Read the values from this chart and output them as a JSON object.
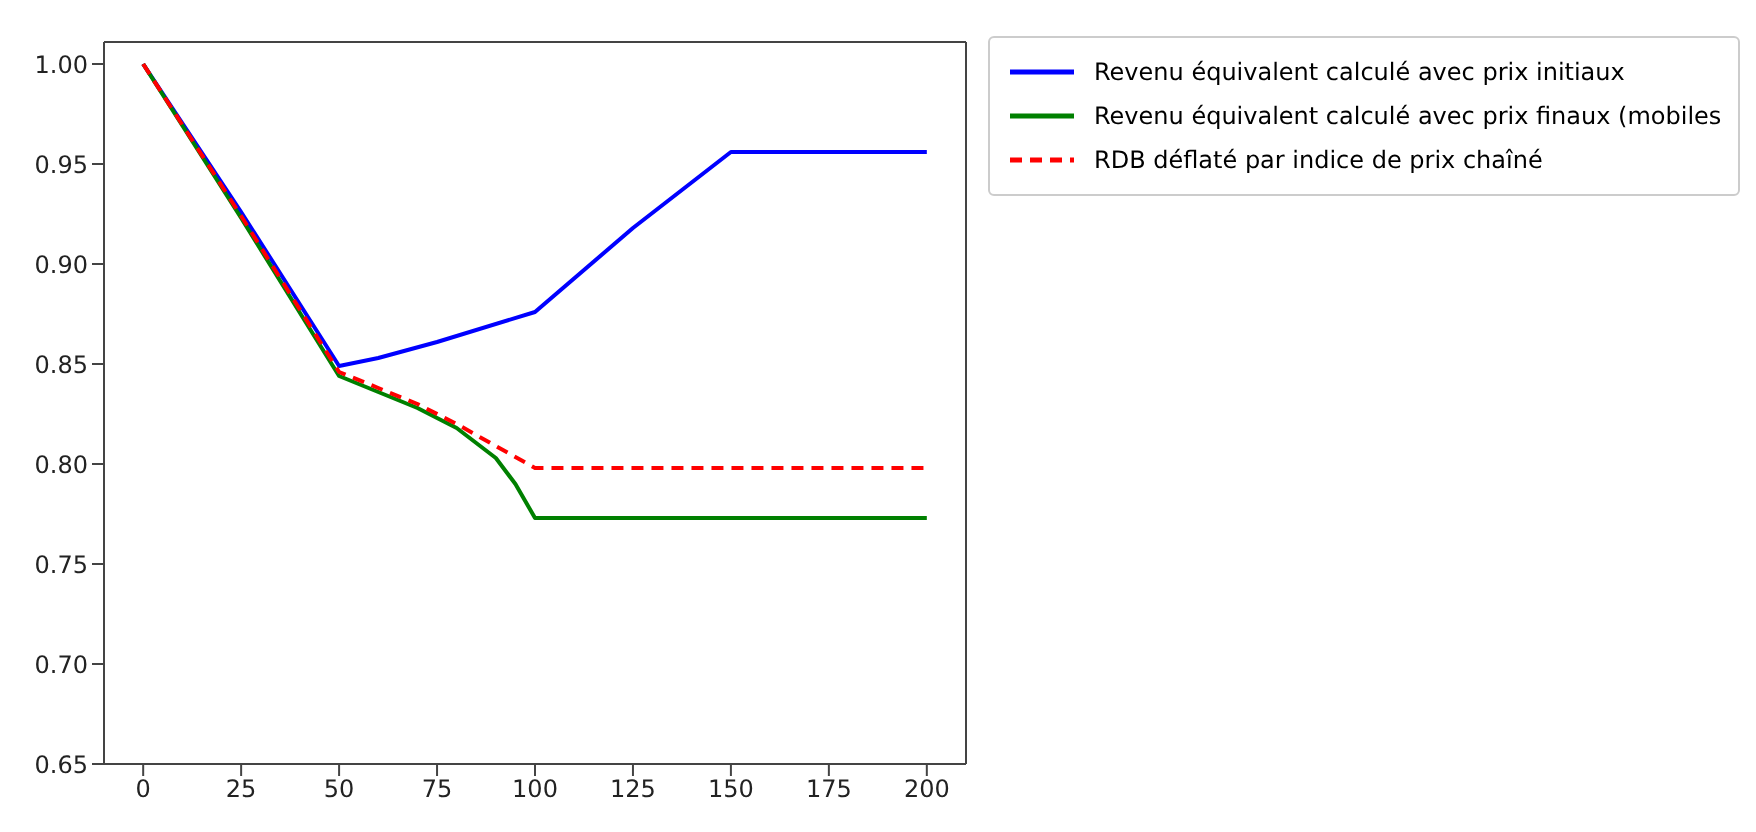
{
  "chart_data": {
    "type": "line",
    "xlim": [
      -10,
      210
    ],
    "ylim": [
      0.65,
      1.011
    ],
    "xticks": [
      0,
      25,
      50,
      75,
      100,
      125,
      150,
      175,
      200
    ],
    "yticks": [
      {
        "value": 0.65,
        "label": "0.65"
      },
      {
        "value": 0.7,
        "label": "0.70"
      },
      {
        "value": 0.75,
        "label": "0.75"
      },
      {
        "value": 0.8,
        "label": "0.80"
      },
      {
        "value": 0.85,
        "label": "0.85"
      },
      {
        "value": 0.9,
        "label": "0.90"
      },
      {
        "value": 0.95,
        "label": "0.95"
      },
      {
        "value": 1,
        "label": "1.00"
      }
    ],
    "grid": false,
    "legend": "top right",
    "marker": "none",
    "series": [
      {
        "name": "Revenu équivalent calculé avec prix initiaux",
        "color": "#0000ff",
        "line_style": "solid",
        "x": [
          0,
          25,
          50,
          60,
          75,
          100,
          125,
          150,
          200
        ],
        "values": [
          1.0,
          0.926,
          0.849,
          0.853,
          0.861,
          0.876,
          0.918,
          0.956,
          0.956
        ]
      },
      {
        "name": "Revenu équivalent calculé avec prix finaux (mobiles",
        "color": "#008000",
        "line_style": "solid",
        "x": [
          0,
          25,
          50,
          60,
          70,
          80,
          90,
          95,
          100,
          200
        ],
        "values": [
          1.0,
          0.923,
          0.844,
          0.836,
          0.828,
          0.818,
          0.803,
          0.79,
          0.773,
          0.773
        ]
      },
      {
        "name": "RDB déflaté par indice de prix chaîné",
        "color": "#ff0000",
        "line_style": "dashed",
        "x": [
          0,
          25,
          50,
          60,
          70,
          80,
          90,
          100,
          200
        ],
        "values": [
          1.0,
          0.924,
          0.846,
          0.838,
          0.83,
          0.82,
          0.809,
          0.798,
          0.798
        ]
      }
    ]
  }
}
